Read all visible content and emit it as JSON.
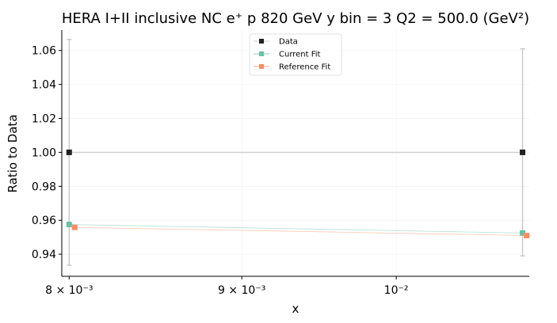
{
  "chart_data": {
    "type": "scatter",
    "title": "HERA I+II inclusive NC e⁺ p 820 GeV y bin = 3 Q2 = 500.0 (GeV²)",
    "xlabel": "x",
    "ylabel": "Ratio to Data",
    "x_scale": "log",
    "xlim": [
      0.00796,
      0.01095
    ],
    "ylim": [
      0.927,
      1.072
    ],
    "x_ticks": [
      {
        "value": 0.008,
        "label": "8 × 10⁻³"
      },
      {
        "value": 0.009,
        "label": "9 × 10⁻³"
      },
      {
        "value": 0.01,
        "label": "10⁻²"
      }
    ],
    "y_ticks": [
      {
        "value": 0.94,
        "label": "0.94"
      },
      {
        "value": 0.96,
        "label": "0.96"
      },
      {
        "value": 0.98,
        "label": "0.98"
      },
      {
        "value": 1.0,
        "label": "1.00"
      },
      {
        "value": 1.02,
        "label": "1.02"
      },
      {
        "value": 1.04,
        "label": "1.04"
      },
      {
        "value": 1.06,
        "label": "1.06"
      }
    ],
    "grid": true,
    "legend_position": "top-center",
    "series": [
      {
        "name": "Data",
        "color": "#222222",
        "x": [
          0.008,
          0.0109
        ],
        "y": [
          1.0,
          1.0
        ],
        "err": [
          0.0665,
          0.061
        ]
      },
      {
        "name": "Current Fit",
        "color": "#66c2a5",
        "x": [
          0.008,
          0.0109
        ],
        "y": [
          0.9575,
          0.9525
        ],
        "err": [
          0.0,
          0.0
        ]
      },
      {
        "name": "Reference Fit",
        "color": "#fc8d62",
        "x": [
          0.00803,
          0.01093
        ],
        "y": [
          0.9558,
          0.951
        ],
        "err": [
          0.0,
          0.0
        ]
      }
    ]
  }
}
